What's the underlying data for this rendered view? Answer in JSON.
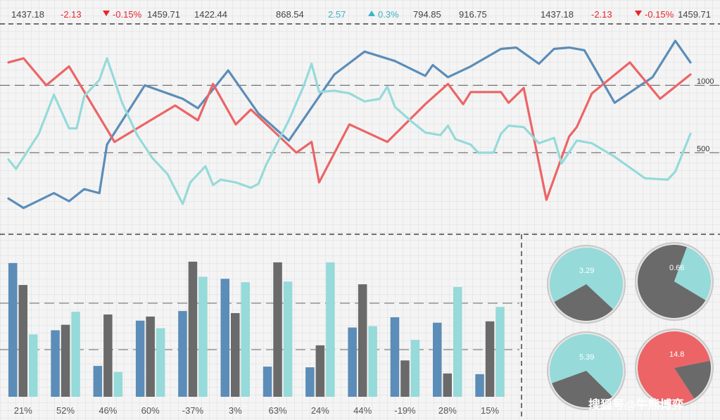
{
  "ticker": [
    {
      "text": "1437.18",
      "dir": "none"
    },
    {
      "text": "-2.13",
      "dir": "down"
    },
    {
      "text": "-0.15%",
      "dir": "down",
      "arrow": "triangle-down-icon"
    },
    {
      "text": "1459.71",
      "dir": "none"
    },
    {
      "text": "1422.44",
      "dir": "none"
    },
    {
      "text": "868.54",
      "dir": "none"
    },
    {
      "text": "2.57",
      "dir": "up"
    },
    {
      "text": "0.3%",
      "dir": "up",
      "arrow": "triangle-up-icon"
    },
    {
      "text": "794.85",
      "dir": "none"
    },
    {
      "text": "916.75",
      "dir": "none"
    },
    {
      "text": "1437.18",
      "dir": "none"
    },
    {
      "text": "-2.13",
      "dir": "down"
    },
    {
      "text": "-0.15%",
      "dir": "down",
      "arrow": "triangle-down-icon"
    },
    {
      "text": "1459.71",
      "dir": "none"
    }
  ],
  "colors": {
    "blue": "#5b8db8",
    "red": "#ec6466",
    "cyan": "#96dada",
    "gray": "#6a6a6a",
    "down": "#e8262b",
    "up": "#3bb4c8"
  },
  "watermark": "搜狐号@牛熊博弈",
  "chart_data": [
    {
      "type": "line",
      "title": "",
      "ylabels": [
        "1000",
        "500"
      ],
      "yticks": [
        1000,
        500
      ],
      "ylim": [
        -100,
        1450
      ],
      "x": [
        0,
        1,
        2,
        3,
        4,
        5,
        6,
        7,
        8,
        9,
        10,
        11,
        12,
        13,
        14,
        15,
        16,
        17,
        18,
        19,
        20,
        21,
        22,
        23,
        24,
        25,
        26,
        27,
        28,
        29,
        30,
        31,
        32,
        33,
        34,
        35,
        36,
        37,
        38,
        39,
        40,
        41,
        42,
        43,
        44,
        45,
        46,
        47,
        48,
        49,
        50,
        51,
        52,
        53,
        54,
        55,
        56,
        57,
        58,
        59,
        60,
        61,
        62,
        63,
        64,
        65,
        66,
        67,
        68,
        69,
        70,
        71,
        72,
        73,
        74,
        75,
        76,
        77,
        78,
        79,
        80,
        81,
        82,
        83,
        84,
        85,
        86,
        87,
        88,
        89,
        90
      ],
      "xlim": [
        0,
        90
      ],
      "series": [
        {
          "color": "blue",
          "points": [
            [
              0,
              160
            ],
            [
              2,
              90
            ],
            [
              6,
              200
            ],
            [
              8,
              140
            ],
            [
              10,
              230
            ],
            [
              12,
              200
            ],
            [
              13,
              560
            ],
            [
              18,
              1000
            ],
            [
              23,
              900
            ],
            [
              25,
              830
            ],
            [
              29,
              1110
            ],
            [
              33,
              790
            ],
            [
              37,
              590
            ],
            [
              43,
              1080
            ],
            [
              47,
              1250
            ],
            [
              51,
              1180
            ],
            [
              55,
              1070
            ],
            [
              56,
              1150
            ],
            [
              58,
              1060
            ],
            [
              61,
              1140
            ],
            [
              65,
              1270
            ],
            [
              67,
              1280
            ],
            [
              70,
              1160
            ],
            [
              72,
              1270
            ],
            [
              74,
              1280
            ],
            [
              76,
              1260
            ],
            [
              80,
              870
            ],
            [
              85,
              1060
            ],
            [
              88,
              1330
            ],
            [
              90,
              1170
            ]
          ]
        },
        {
          "color": "red",
          "points": [
            [
              0,
              1170
            ],
            [
              2,
              1200
            ],
            [
              5,
              1000
            ],
            [
              8,
              1140
            ],
            [
              14,
              580
            ],
            [
              22,
              850
            ],
            [
              25,
              740
            ],
            [
              27,
              1010
            ],
            [
              30,
              710
            ],
            [
              32,
              820
            ],
            [
              38,
              500
            ],
            [
              40,
              580
            ],
            [
              41,
              280
            ],
            [
              45,
              710
            ],
            [
              50,
              580
            ],
            [
              55,
              860
            ],
            [
              58,
              1010
            ],
            [
              60,
              860
            ],
            [
              61,
              950
            ],
            [
              65,
              950
            ],
            [
              66,
              870
            ],
            [
              68,
              980
            ],
            [
              71,
              150
            ],
            [
              74,
              620
            ],
            [
              75,
              690
            ],
            [
              77,
              940
            ],
            [
              82,
              1170
            ],
            [
              86,
              900
            ],
            [
              90,
              1080
            ]
          ]
        },
        {
          "color": "cyan",
          "points": [
            [
              0,
              450
            ],
            [
              1,
              380
            ],
            [
              4,
              640
            ],
            [
              6,
              930
            ],
            [
              8,
              680
            ],
            [
              9,
              680
            ],
            [
              10,
              920
            ],
            [
              12,
              1040
            ],
            [
              13,
              1200
            ],
            [
              15,
              870
            ],
            [
              17,
              630
            ],
            [
              19,
              460
            ],
            [
              21,
              340
            ],
            [
              23,
              120
            ],
            [
              24,
              280
            ],
            [
              25,
              340
            ],
            [
              26,
              400
            ],
            [
              27,
              260
            ],
            [
              28,
              300
            ],
            [
              30,
              280
            ],
            [
              32,
              240
            ],
            [
              33,
              270
            ],
            [
              34,
              410
            ],
            [
              37,
              740
            ],
            [
              39,
              1000
            ],
            [
              40,
              1160
            ],
            [
              41,
              950
            ],
            [
              43,
              960
            ],
            [
              45,
              940
            ],
            [
              47,
              880
            ],
            [
              49,
              900
            ],
            [
              50,
              990
            ],
            [
              51,
              840
            ],
            [
              53,
              740
            ],
            [
              55,
              650
            ],
            [
              57,
              630
            ],
            [
              58,
              700
            ],
            [
              59,
              600
            ],
            [
              61,
              560
            ],
            [
              62,
              500
            ],
            [
              64,
              500
            ],
            [
              65,
              640
            ],
            [
              66,
              700
            ],
            [
              68,
              690
            ],
            [
              70,
              570
            ],
            [
              72,
              610
            ],
            [
              73,
              420
            ],
            [
              75,
              590
            ],
            [
              77,
              570
            ],
            [
              80,
              470
            ],
            [
              84,
              310
            ],
            [
              87,
              300
            ],
            [
              88,
              360
            ],
            [
              90,
              640
            ]
          ]
        }
      ]
    },
    {
      "type": "bar",
      "title": "",
      "categories": [
        "21%",
        "52%",
        "46%",
        "60%",
        "-37%",
        "3%",
        "63%",
        "24%",
        "44%",
        "-19%",
        "28%",
        "15%"
      ],
      "ylim": [
        0,
        200
      ],
      "series": [
        {
          "color": "blue",
          "values": [
            195,
            97,
            45,
            111,
            125,
            172,
            44,
            43,
            101,
            116,
            108,
            33
          ]
        },
        {
          "color": "gray",
          "values": [
            163,
            105,
            120,
            117,
            197,
            122,
            196,
            75,
            164,
            53,
            34,
            110
          ]
        },
        {
          "color": "cyan",
          "values": [
            91,
            124,
            36,
            100,
            175,
            167,
            168,
            196,
            103,
            83,
            160,
            131
          ]
        }
      ]
    },
    {
      "type": "pie",
      "title": "",
      "pies": [
        {
          "label": "3.29",
          "slices": [
            {
              "color": "cyan",
              "value": 0.7
            },
            {
              "color": "gray",
              "value": 0.3
            }
          ]
        },
        {
          "label": "0.66",
          "slices": [
            {
              "color": "gray",
              "value": 0.72
            },
            {
              "color": "cyan",
              "value": 0.28
            }
          ]
        },
        {
          "label": "5.39",
          "slices": [
            {
              "color": "cyan",
              "value": 0.68
            },
            {
              "color": "gray",
              "value": 0.32
            }
          ]
        },
        {
          "label": "14.8",
          "slices": [
            {
              "color": "red",
              "value": 0.81
            },
            {
              "color": "gray",
              "value": 0.19
            }
          ]
        }
      ]
    }
  ]
}
